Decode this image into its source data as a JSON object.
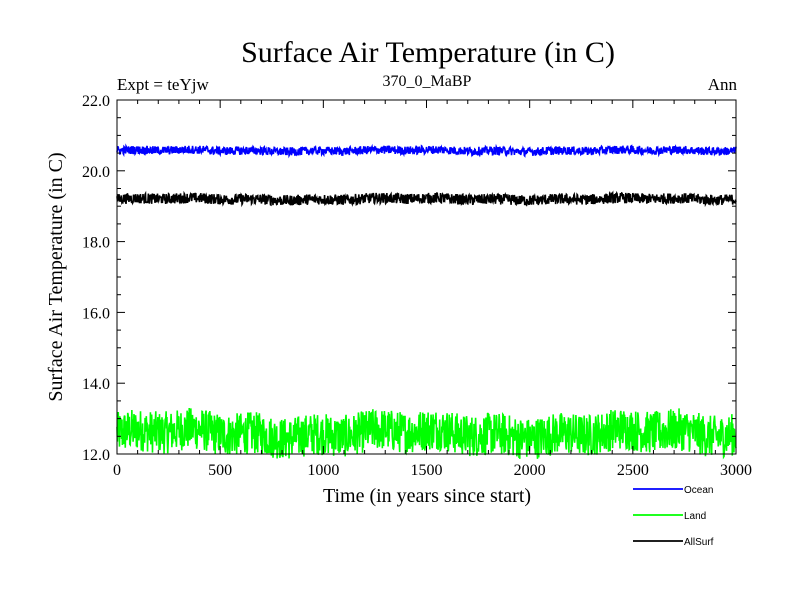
{
  "chart_data": {
    "type": "line",
    "title": "Surface Air Temperature (in C)",
    "subtitle": "370_0_MaBP",
    "left_label": "Expt = teYjw",
    "right_label": "Ann",
    "xlabel": "Time (in years since start)",
    "ylabel": "Surface Air Temperature (in C)",
    "xlim": [
      0,
      3000
    ],
    "ylim": [
      12.0,
      22.0
    ],
    "xticks": [
      0,
      500,
      1000,
      1500,
      2000,
      2500,
      3000
    ],
    "xtick_labels": [
      "0",
      "500",
      "1000",
      "1500",
      "2000",
      "2500",
      "3000"
    ],
    "yticks": [
      12.0,
      14.0,
      16.0,
      18.0,
      20.0,
      22.0
    ],
    "ytick_labels": [
      "12.0",
      "14.0",
      "16.0",
      "18.0",
      "20.0",
      "22.0"
    ],
    "legend_position": "bottom-right, below plot",
    "series": [
      {
        "name": "Ocean",
        "color": "#0000ff",
        "mean": 20.57,
        "noise_amplitude": 0.12
      },
      {
        "name": "Land",
        "color": "#00ff00",
        "mean": 12.58,
        "noise_amplitude": 0.6
      },
      {
        "name": "AllSurf",
        "color": "#000000",
        "mean": 19.2,
        "noise_amplitude": 0.15
      }
    ]
  }
}
